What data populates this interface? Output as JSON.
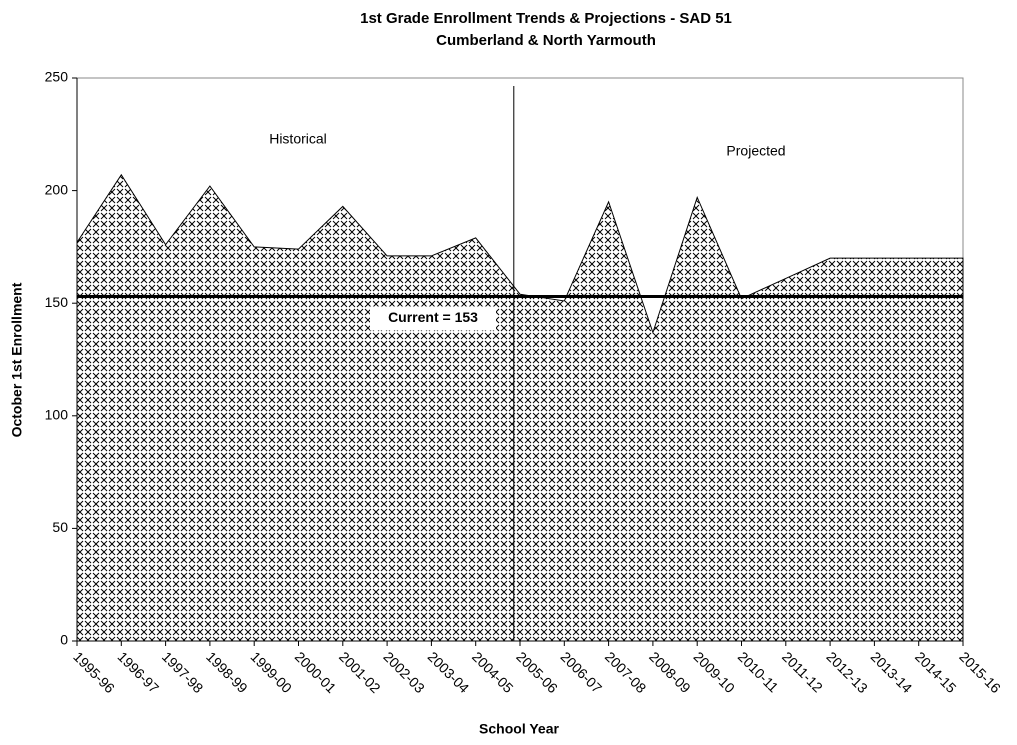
{
  "chart_data": {
    "type": "area",
    "title": "1st Grade Enrollment Trends & Projections - SAD 51",
    "subtitle": "Cumberland & North Yarmouth",
    "x_label": "School Year",
    "y_label": "October 1st Enrollment",
    "categories": [
      "1995-96",
      "1996-97",
      "1997-98",
      "1998-99",
      "1999-00",
      "2000-01",
      "2001-02",
      "2002-03",
      "2003-04",
      "2004-05",
      "2005-06",
      "2006-07",
      "2007-08",
      "2008-09",
      "2009-10",
      "2010-11",
      "2011-12",
      "2012-13",
      "2013-14",
      "2014-15",
      "2015-16"
    ],
    "series": [
      {
        "name": "Enrollment",
        "color": "#000000",
        "values": [
          177,
          207,
          176,
          202,
          175,
          174,
          193,
          171,
          171,
          179,
          154,
          151,
          195,
          137,
          197,
          152,
          161,
          170,
          170,
          170,
          170
        ]
      }
    ],
    "reference_line": {
      "value": 153,
      "label": "Current = 153"
    },
    "annotations": [
      "Historical",
      "Projected"
    ],
    "ylim": [
      0,
      250
    ],
    "yticks": [
      0,
      50,
      100,
      150,
      200,
      250
    ]
  }
}
